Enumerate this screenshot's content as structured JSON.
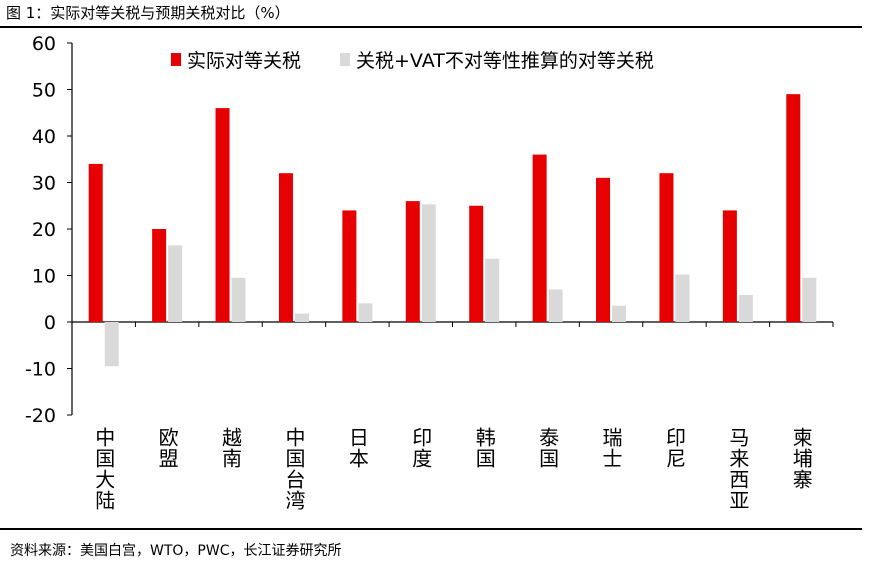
{
  "figure": {
    "title": "图 1：实际对等关税与预期关税对比（%）",
    "source": "资料来源：美国白宫，WTO，PWC，长江证券研究所"
  },
  "chart_data": {
    "type": "bar",
    "categories": [
      "中国大陆",
      "欧盟",
      "越南",
      "中国台湾",
      "日本",
      "印度",
      "韩国",
      "泰国",
      "瑞士",
      "印尼",
      "马来西亚",
      "柬埔寨"
    ],
    "series": [
      {
        "name": "实际对等关税",
        "color": "#e60000",
        "values": [
          34,
          20,
          46,
          32,
          24,
          26,
          25,
          36,
          31,
          32,
          24,
          49
        ]
      },
      {
        "name": "关税+VAT不对等性推算的对等关税",
        "color": "#d9d9d9",
        "values": [
          -9.5,
          16.5,
          9.5,
          1.8,
          4.0,
          25.3,
          13.6,
          7.0,
          3.5,
          10.2,
          5.8,
          9.5
        ]
      }
    ],
    "ylim": [
      -20,
      60
    ],
    "yticks": [
      -20,
      -10,
      0,
      10,
      20,
      30,
      40,
      50,
      60
    ],
    "ytick_labels": [
      "-20",
      "-10",
      "0",
      "10",
      "20",
      "30",
      "40",
      "50",
      "60"
    ],
    "legend_position": "top",
    "grid": false
  }
}
